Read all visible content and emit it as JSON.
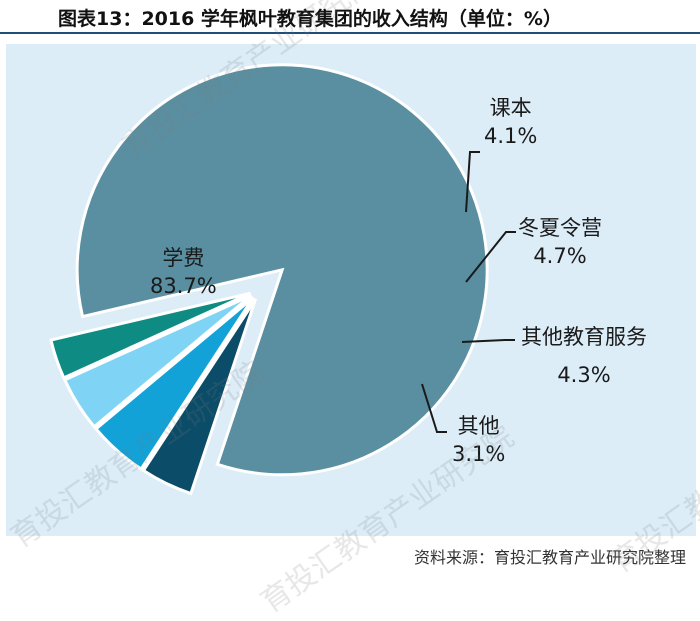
{
  "title": "图表13：2016 学年枫叶教育集团的收入结构（单位：%）",
  "source": "资料来源：育投汇教育产业研究院整理",
  "watermark": "育投汇教育产业研究院",
  "colors": {
    "tuition": "#5a8fa1",
    "textbook": "#0b4c68",
    "summer_winter_camp": "#12a2d8",
    "other_edu_services": "#7fd3f5",
    "other": "#0e8c84",
    "background": "#dcedf8"
  },
  "chart_data": {
    "type": "pie",
    "title": "图表13：2016 学年枫叶教育集团的收入结构（单位：%）",
    "slices": [
      {
        "label": "学费",
        "value": 83.7,
        "value_label": "83.7%",
        "color": "#5a8fa1",
        "exploded": true
      },
      {
        "label": "课本",
        "value": 4.1,
        "value_label": "4.1%",
        "color": "#0b4c68"
      },
      {
        "label": "冬夏令营",
        "value": 4.7,
        "value_label": "4.7%",
        "color": "#12a2d8"
      },
      {
        "label": "其他教育服务",
        "value": 4.3,
        "value_label": "4.3%",
        "color": "#7fd3f5"
      },
      {
        "label": "其他",
        "value": 3.1,
        "value_label": "3.1%",
        "color": "#0e8c84"
      }
    ]
  }
}
